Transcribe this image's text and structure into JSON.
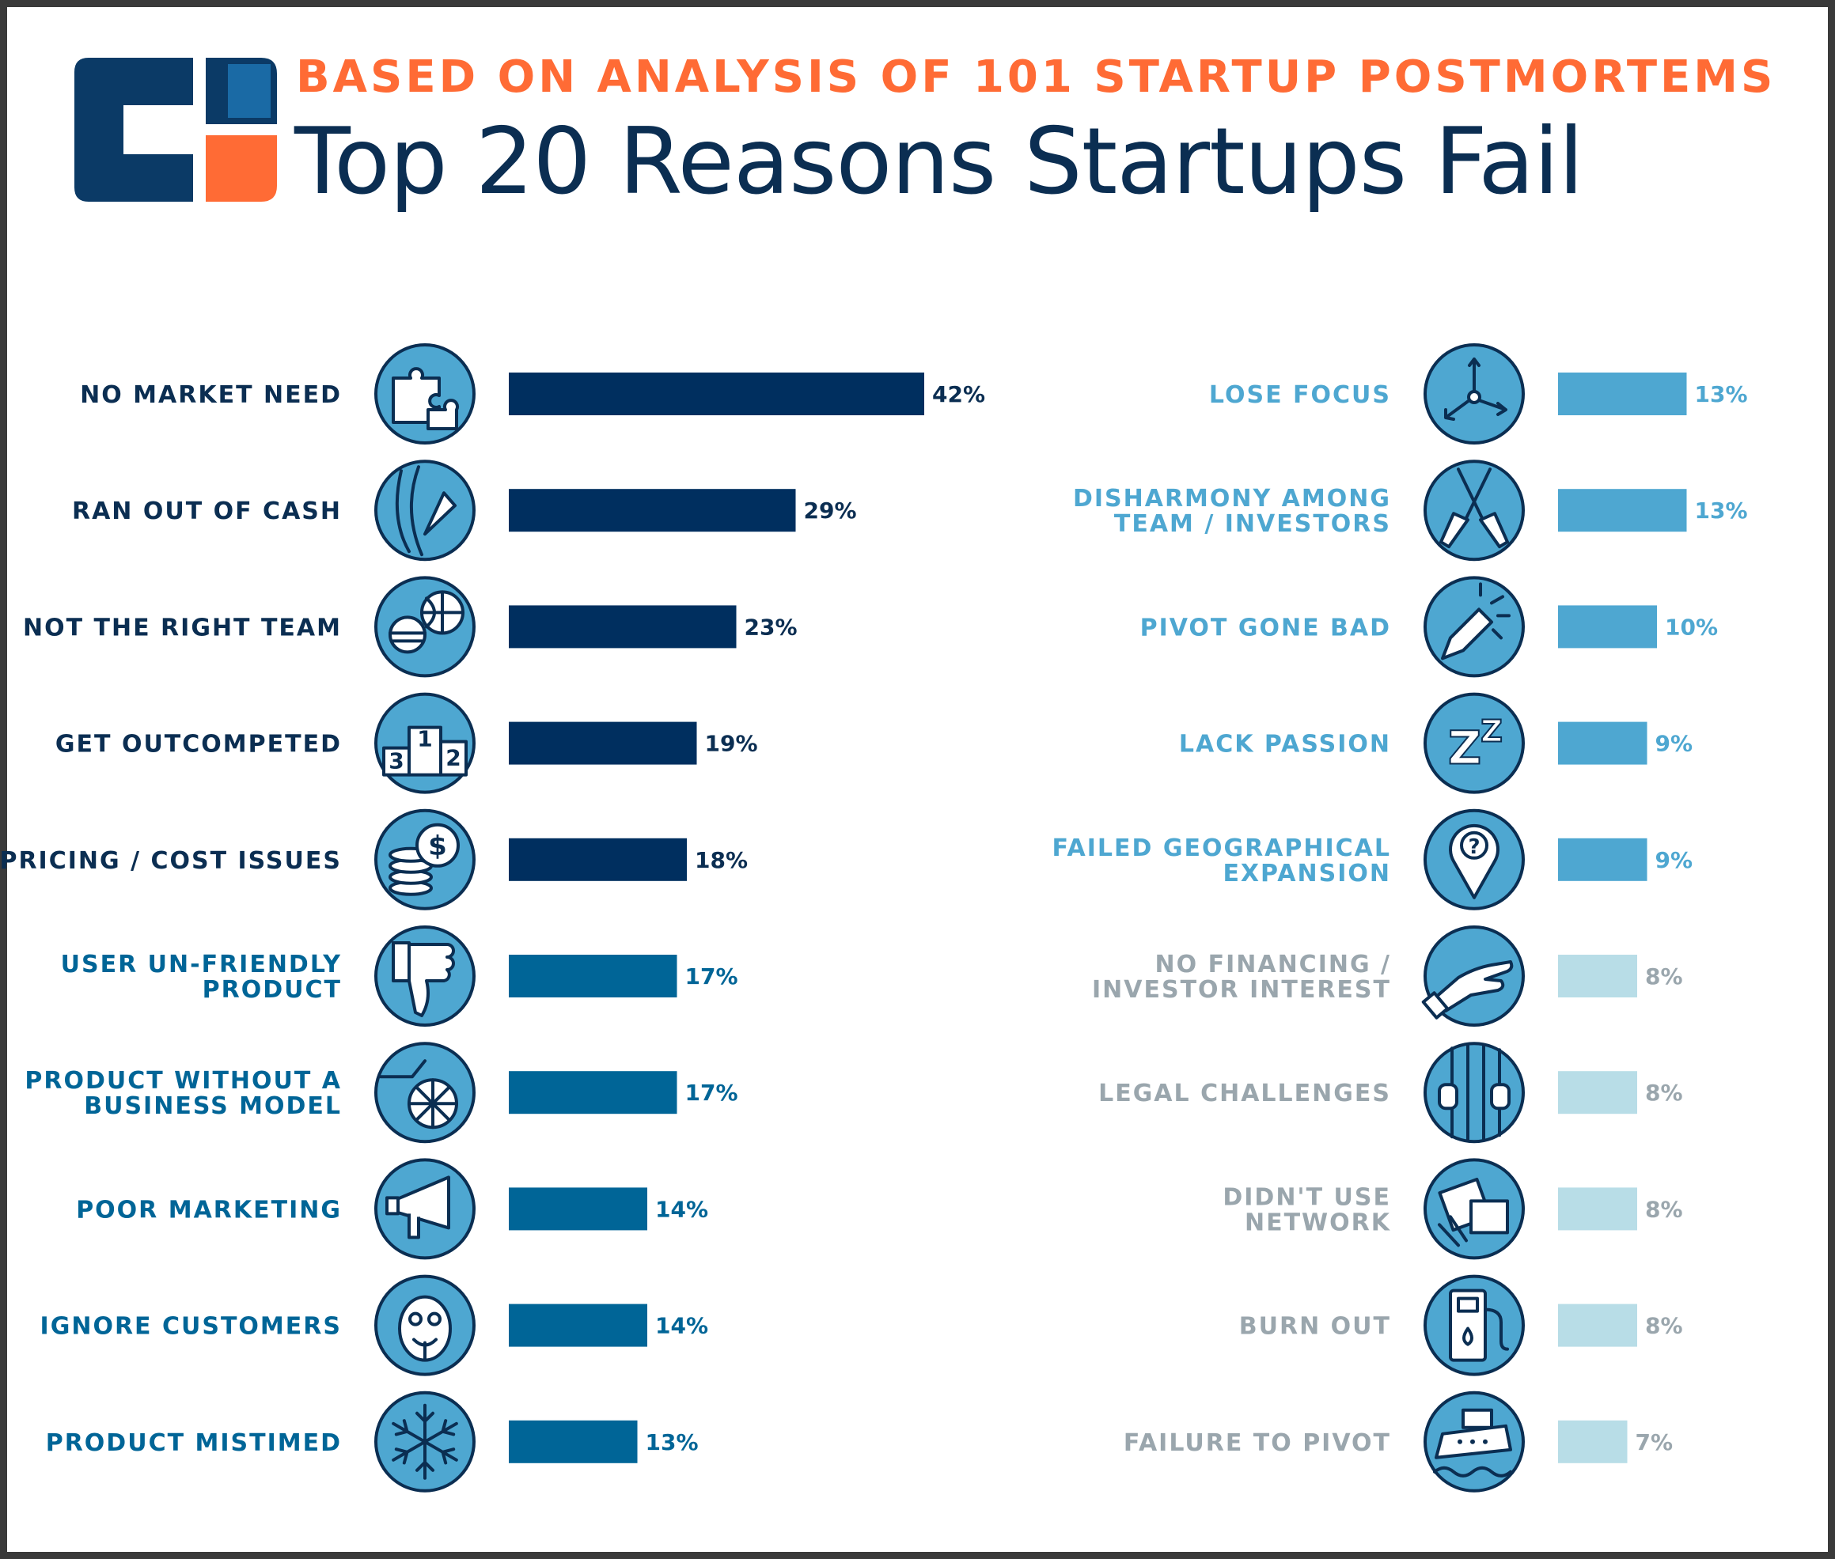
{
  "header": {
    "subtitle": "BASED ON ANALYSIS OF 101 STARTUP POSTMORTEMS",
    "title": "Top 20 Reasons Startups Fail"
  },
  "colors": {
    "navy": "#002f5f",
    "blue": "#006597",
    "lightblue": "#4ea7d1",
    "pale": "#b8dde7",
    "orange": "#ff6b35",
    "icon_fill": "#4ea7d1",
    "icon_stroke": "#0b2e52",
    "label_gray": "#9aa6ad"
  },
  "chart_data": {
    "type": "bar",
    "orientation": "horizontal",
    "title": "Top 20 Reasons Startups Fail",
    "subtitle": "BASED ON ANALYSIS OF 101 STARTUP POSTMORTEMS",
    "unit": "%",
    "xlim": [
      0,
      42
    ],
    "columns": [
      {
        "items": [
          {
            "label": [
              "NO MARKET NEED"
            ],
            "value": 42,
            "tier": "navy",
            "icon": "puzzle-icon"
          },
          {
            "label": [
              "RAN OUT OF CASH"
            ],
            "value": 29,
            "tier": "navy",
            "icon": "cash-knife-icon"
          },
          {
            "label": [
              "NOT THE RIGHT TEAM"
            ],
            "value": 23,
            "tier": "navy",
            "icon": "team-player-icon"
          },
          {
            "label": [
              "GET OUTCOMPETED"
            ],
            "value": 19,
            "tier": "navy",
            "icon": "podium-icon"
          },
          {
            "label": [
              "PRICING / COST ISSUES"
            ],
            "value": 18,
            "tier": "navy",
            "icon": "coins-icon"
          },
          {
            "label": [
              "USER UN-FRIENDLY",
              "PRODUCT"
            ],
            "value": 17,
            "tier": "blue",
            "icon": "thumbs-down-icon"
          },
          {
            "label": [
              "PRODUCT WITHOUT A",
              "BUSINESS MODEL"
            ],
            "value": 17,
            "tier": "blue",
            "icon": "cart-icon"
          },
          {
            "label": [
              "POOR MARKETING"
            ],
            "value": 14,
            "tier": "blue",
            "icon": "megaphone-icon"
          },
          {
            "label": [
              "IGNORE CUSTOMERS"
            ],
            "value": 14,
            "tier": "blue",
            "icon": "monkey-icon"
          },
          {
            "label": [
              "PRODUCT MISTIMED"
            ],
            "value": 13,
            "tier": "blue",
            "icon": "snowflake-icon"
          }
        ]
      },
      {
        "items": [
          {
            "label": [
              "LOSE FOCUS"
            ],
            "value": 13,
            "tier": "lightblue",
            "icon": "arrows-icon"
          },
          {
            "label": [
              "DISHARMONY AMONG",
              "TEAM / INVESTORS"
            ],
            "value": 13,
            "tier": "lightblue",
            "icon": "oars-icon"
          },
          {
            "label": [
              "PIVOT GONE BAD"
            ],
            "value": 10,
            "tier": "lightblue",
            "icon": "broken-pencil-icon"
          },
          {
            "label": [
              "LACK PASSION"
            ],
            "value": 9,
            "tier": "lightblue",
            "icon": "sleep-icon"
          },
          {
            "label": [
              "FAILED GEOGRAPHICAL",
              "EXPANSION"
            ],
            "value": 9,
            "tier": "lightblue",
            "icon": "map-pin-icon"
          },
          {
            "label": [
              "NO FINANCING /",
              "INVESTOR INTEREST"
            ],
            "value": 8,
            "tier": "pale",
            "icon": "open-hand-icon"
          },
          {
            "label": [
              "LEGAL CHALLENGES"
            ],
            "value": 8,
            "tier": "pale",
            "icon": "jail-icon"
          },
          {
            "label": [
              "DIDN'T USE",
              "NETWORK"
            ],
            "value": 8,
            "tier": "pale",
            "icon": "network-icon"
          },
          {
            "label": [
              "BURN OUT"
            ],
            "value": 8,
            "tier": "pale",
            "icon": "fuel-pump-icon"
          },
          {
            "label": [
              "FAILURE TO PIVOT"
            ],
            "value": 7,
            "tier": "pale",
            "icon": "ship-icon"
          }
        ]
      }
    ]
  }
}
